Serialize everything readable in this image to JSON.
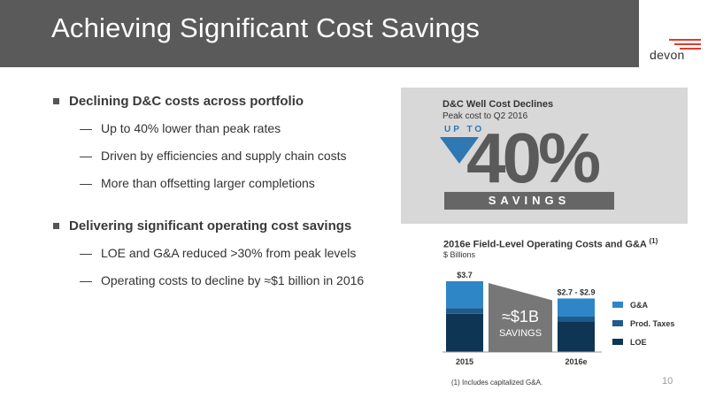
{
  "header": {
    "title": "Achieving Significant Cost Savings"
  },
  "logo": {
    "text": "devon",
    "color": "#e03b2d"
  },
  "bullets": [
    {
      "text": "Declining D&C costs across portfolio",
      "subs": [
        "Up to 40% lower than peak rates",
        "Driven by efficiencies and supply chain costs",
        "More than offsetting larger completions"
      ]
    },
    {
      "text": "Delivering significant operating cost savings",
      "subs": [
        "LOE and G&A reduced >30% from peak levels",
        "Operating costs to decline by ≈$1 billion in 2016"
      ]
    }
  ],
  "callout": {
    "title": "D&C Well Cost Declines",
    "subtitle": "Peak cost to Q2 2016",
    "up_to": "UP TO",
    "value": "40%",
    "savings_label": "SAVINGS"
  },
  "chart_title": {
    "text": "2016e Field-Level Operating Costs and G&A",
    "note_ref": "(1)",
    "subtitle": "$ Billions"
  },
  "chart_data": {
    "type": "bar",
    "stacked": true,
    "categories": [
      "2015",
      "2016e"
    ],
    "total_labels": [
      "$3.7",
      "$2.7 - $2.9"
    ],
    "series": [
      {
        "name": "LOE",
        "values": [
          2.0,
          1.6
        ],
        "color": "#0f3554"
      },
      {
        "name": "Prod. Taxes",
        "values": [
          0.3,
          0.25
        ],
        "color": "#1f5c8c"
      },
      {
        "name": "G&A",
        "values": [
          1.4,
          0.95
        ],
        "color": "#2f86c7"
      }
    ],
    "ylim": [
      0,
      3.7
    ],
    "legend": "right",
    "annotation": {
      "value": "≈$1B",
      "label": "SAVINGS"
    },
    "grid": false
  },
  "footnote": "(1) Includes capitalized G&A.",
  "page_number": "10"
}
